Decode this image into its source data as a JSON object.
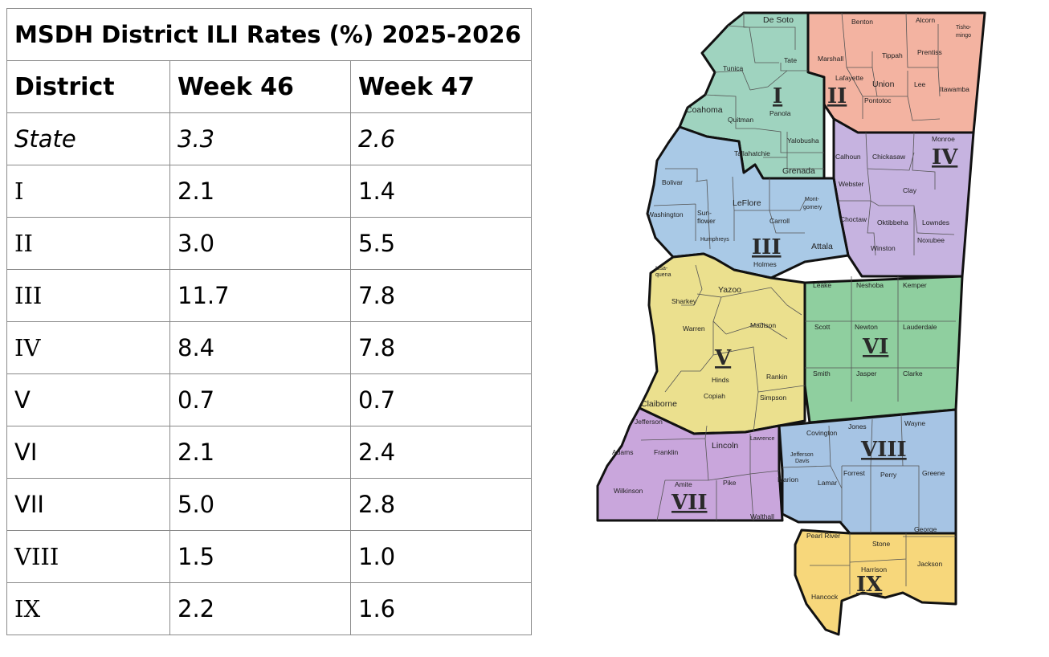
{
  "table": {
    "title": "MSDH District ILI Rates (%) 2025-2026",
    "headers": [
      "District",
      "Week 46",
      "Week 47"
    ],
    "rows": [
      {
        "district": "State",
        "week46": "3.3",
        "week47": "2.6"
      },
      {
        "district": "I",
        "week46": "2.1",
        "week47": "1.4"
      },
      {
        "district": "II",
        "week46": "3.0",
        "week47": "5.5"
      },
      {
        "district": "III",
        "week46": "11.7",
        "week47": "7.8"
      },
      {
        "district": "IV",
        "week46": "8.4",
        "week47": "7.8"
      },
      {
        "district": "V",
        "week46": "0.7",
        "week47": "0.7"
      },
      {
        "district": "VI",
        "week46": "2.1",
        "week47": "2.4"
      },
      {
        "district": "VII",
        "week46": "5.0",
        "week47": "2.8"
      },
      {
        "district": "VIII",
        "week46": "1.5",
        "week47": "1.0"
      },
      {
        "district": "IX",
        "week46": "2.2",
        "week47": "1.6"
      }
    ]
  },
  "map": {
    "colors": {
      "I": "#9fd3bf",
      "II": "#f3b3a1",
      "III": "#a9c9e6",
      "IV": "#c6b3e0",
      "V": "#ebe08e",
      "VI": "#8fcf9f",
      "VII": "#c9a6dc",
      "VIII": "#a6c4e4",
      "IX": "#f7d77b"
    },
    "districts": {
      "I": {
        "numeral": "I",
        "counties": [
          "De Soto",
          "Tate",
          "Tunica",
          "Coahoma",
          "Quitman",
          "Panola",
          "Tallahatchie",
          "Yalobusha",
          "Grenada"
        ]
      },
      "II": {
        "numeral": "II",
        "counties": [
          "Benton",
          "Alcorn",
          "Tisho-",
          "mingo",
          "Marshall",
          "Tippah",
          "Prentiss",
          "Lafayette",
          "Union",
          "Lee",
          "Itawamba",
          "Pontotoc"
        ]
      },
      "III": {
        "numeral": "III",
        "counties": [
          "Bolivar",
          "Washington",
          "Sun-",
          "flower",
          "LeFlore",
          "Mont-",
          "gomery",
          "Carroll",
          "Humphreys",
          "Holmes",
          "Attala"
        ]
      },
      "IV": {
        "numeral": "IV",
        "counties": [
          "Calhoun",
          "Chickasaw",
          "Monroe",
          "Webster",
          "Clay",
          "Choctaw",
          "Oktibbeha",
          "Lowndes",
          "Winston",
          "Noxubee"
        ]
      },
      "V": {
        "numeral": "V",
        "counties": [
          "Issa-",
          "quena",
          "Sharkey",
          "Yazoo",
          "Warren",
          "Madison",
          "Hinds",
          "Rankin",
          "Claiborne",
          "Copiah",
          "Simpson"
        ]
      },
      "VI": {
        "numeral": "VI",
        "counties": [
          "Leake",
          "Neshoba",
          "Kemper",
          "Scott",
          "Newton",
          "Lauderdale",
          "Smith",
          "Jasper",
          "Clarke"
        ]
      },
      "VII": {
        "numeral": "VII",
        "counties": [
          "Jefferson",
          "Adams",
          "Franklin",
          "Lincoln",
          "Lawrence",
          "Wilkinson",
          "Amite",
          "Pike",
          "Walthall"
        ]
      },
      "VIII": {
        "numeral": "VIII",
        "counties": [
          "Covington",
          "Jones",
          "Wayne",
          "Jefferson",
          "Davis",
          "Marion",
          "Lamar",
          "Forrest",
          "Perry",
          "Greene"
        ]
      },
      "IX": {
        "numeral": "IX",
        "counties": [
          "Pearl River",
          "Stone",
          "George",
          "Harrison",
          "Jackson",
          "Hancock"
        ]
      }
    }
  }
}
